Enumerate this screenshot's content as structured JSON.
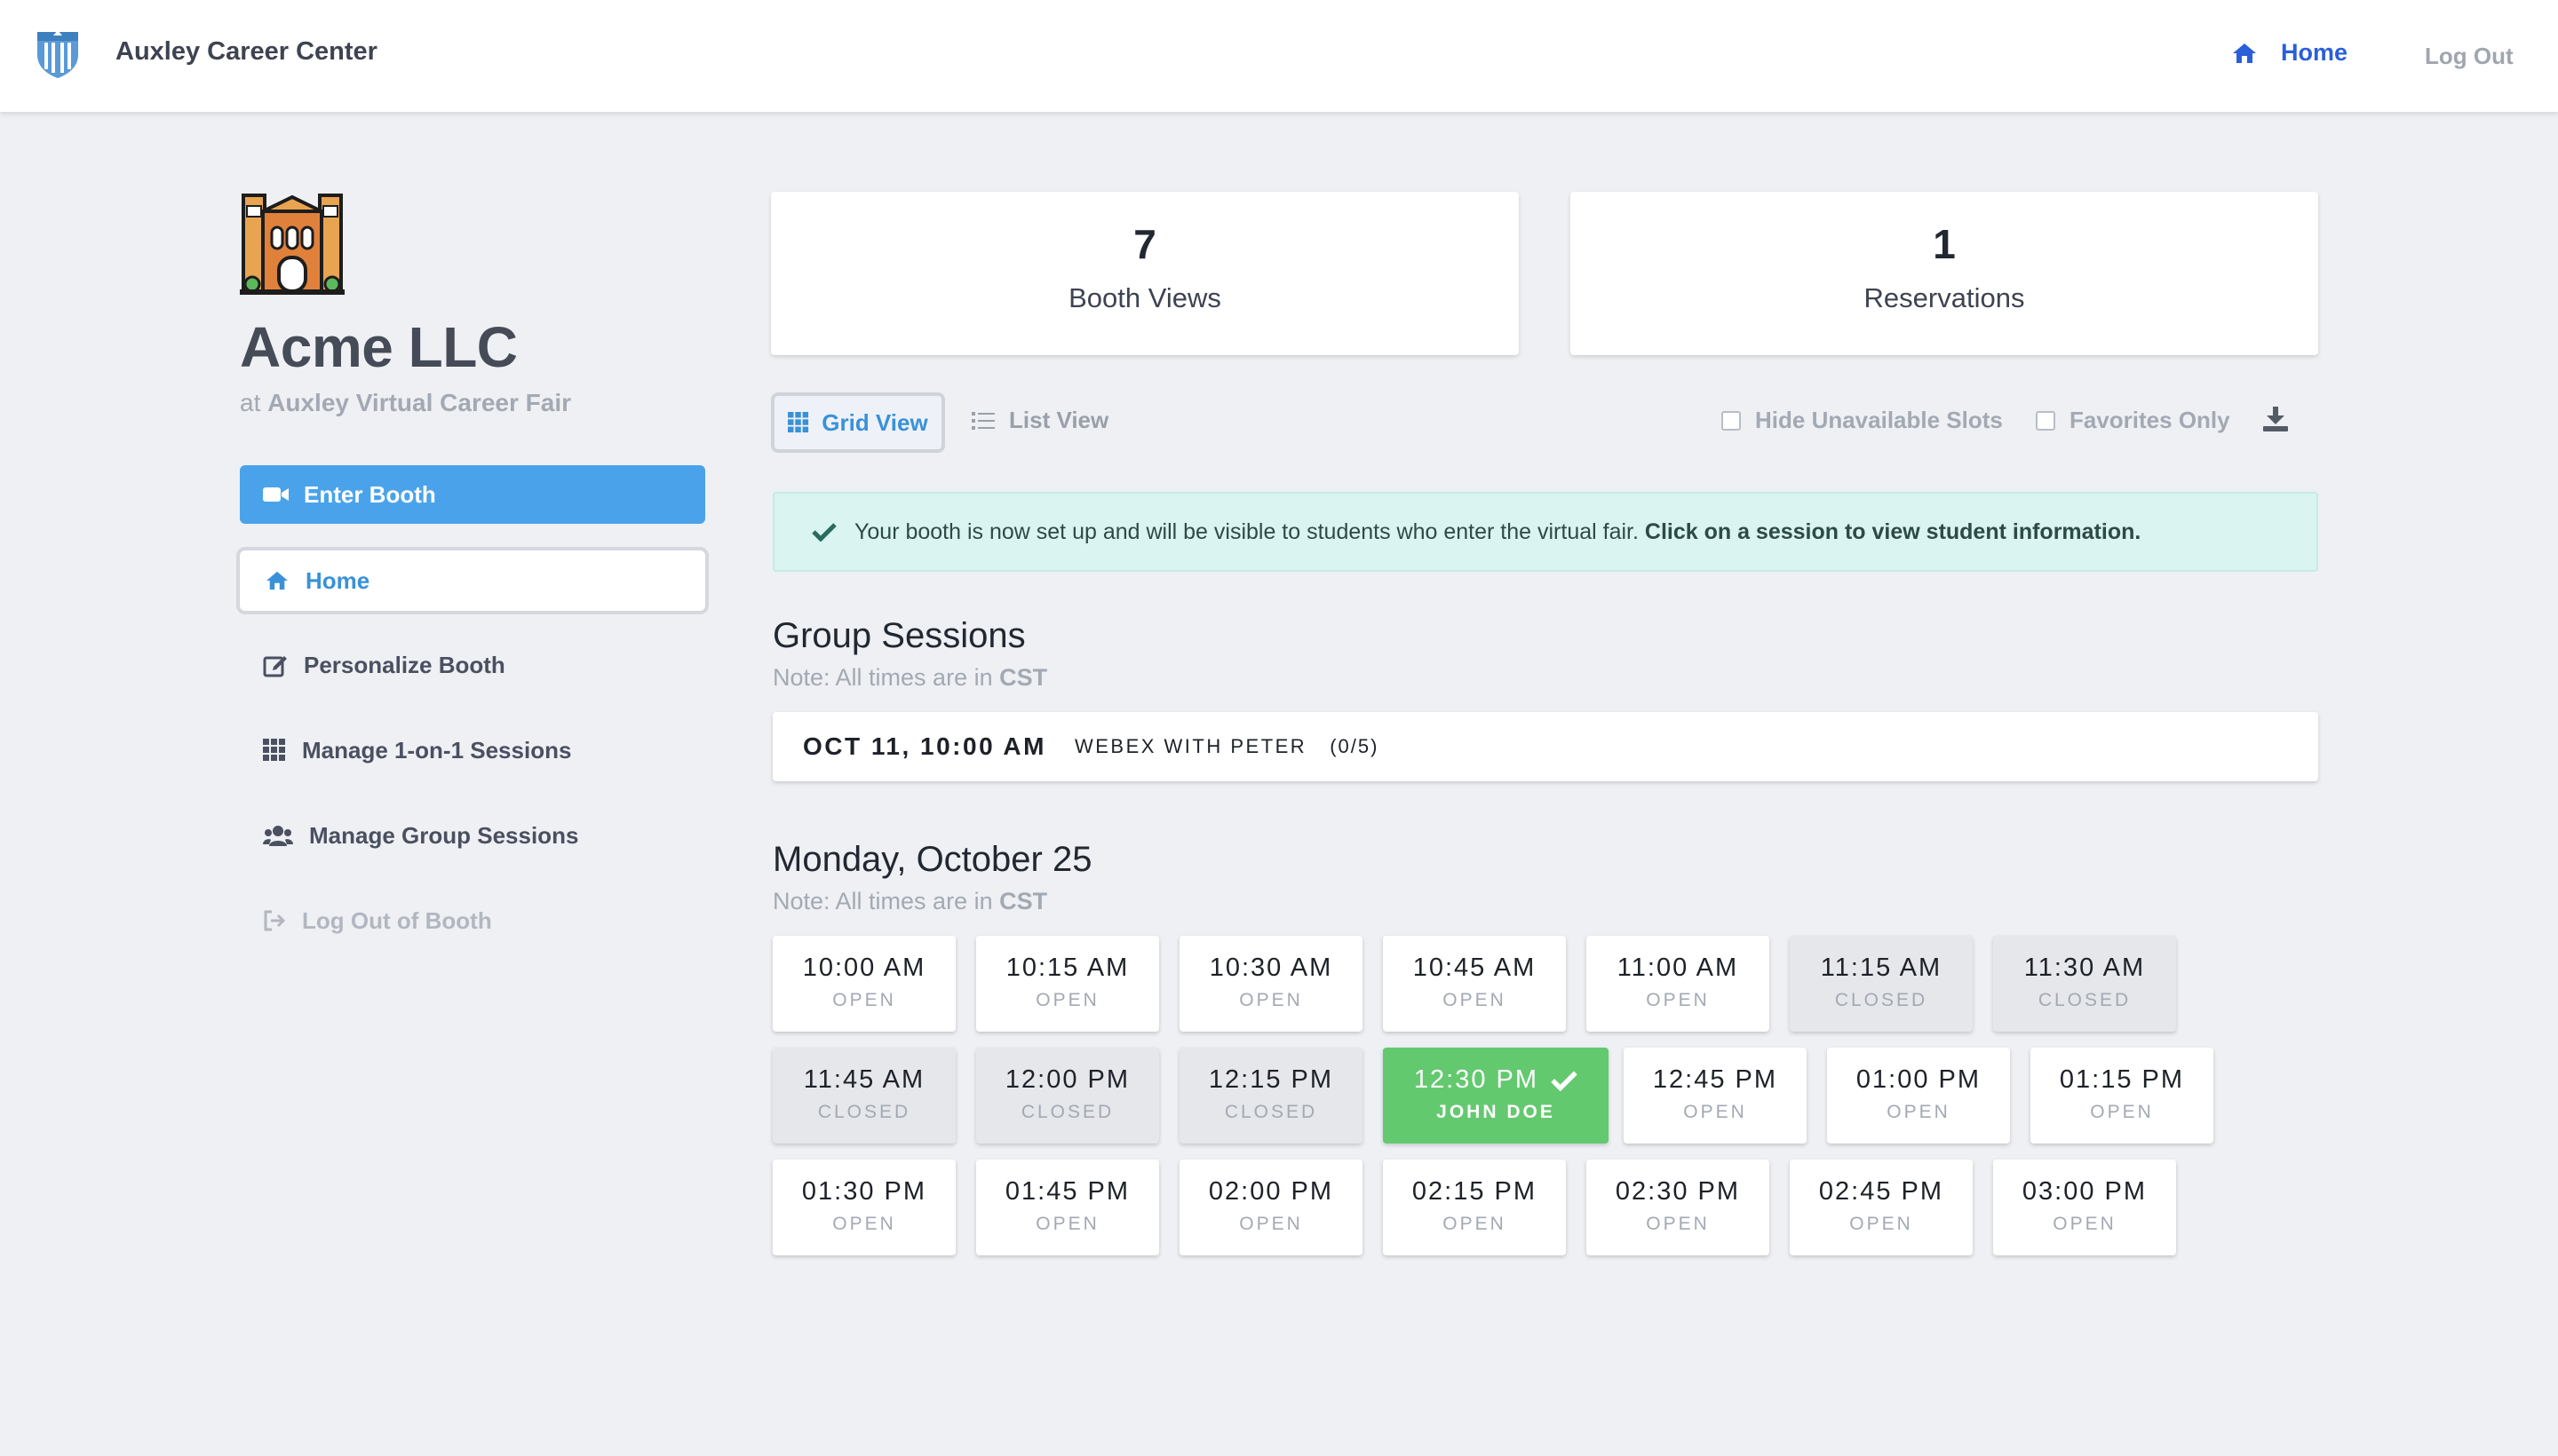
{
  "navbar": {
    "brand": "Auxley Career Center",
    "home_label": "Home",
    "logout_label": "Log Out",
    "accent_color": "#2b5fd9"
  },
  "company": {
    "name": "Acme LLC",
    "at_prefix": "at",
    "fair_name": "Auxley Virtual Career Fair"
  },
  "sidebar": {
    "enter_booth": "Enter Booth",
    "items": [
      {
        "label": "Home",
        "icon": "home-icon",
        "active": true
      },
      {
        "label": "Personalize Booth",
        "icon": "edit-icon"
      },
      {
        "label": "Manage 1-on-1 Sessions",
        "icon": "grid-icon"
      },
      {
        "label": "Manage Group Sessions",
        "icon": "users-icon"
      },
      {
        "label": "Log Out of Booth",
        "icon": "sign-out-icon",
        "muted": true
      }
    ]
  },
  "stats": [
    {
      "value": "7",
      "label": "Booth Views"
    },
    {
      "value": "1",
      "label": "Reservations"
    }
  ],
  "view_toggle": {
    "grid_label": "Grid View",
    "list_label": "List View",
    "selected": "grid"
  },
  "filters": {
    "hide_unavailable": "Hide Unavailable Slots",
    "favorites_only": "Favorites Only"
  },
  "alert": {
    "message": "Your booth is now set up and will be visible to students who enter the virtual fair.",
    "emphasis": "Click on a session to view student information."
  },
  "group_sessions": {
    "title": "Group Sessions",
    "note_prefix": "Note: All times are in",
    "timezone": "CST",
    "sessions": [
      {
        "date": "OCT 11, 10:00 AM",
        "name": "WEBEX WITH PETER",
        "count": "(0/5)"
      }
    ]
  },
  "day_schedule": {
    "title": "Monday, October 25",
    "note_prefix": "Note: All times are in",
    "timezone": "CST",
    "slots": [
      {
        "time": "10:00 AM",
        "status": "OPEN"
      },
      {
        "time": "10:15 AM",
        "status": "OPEN"
      },
      {
        "time": "10:30 AM",
        "status": "OPEN"
      },
      {
        "time": "10:45 AM",
        "status": "OPEN"
      },
      {
        "time": "11:00 AM",
        "status": "OPEN"
      },
      {
        "time": "11:15 AM",
        "status": "CLOSED"
      },
      {
        "time": "11:30 AM",
        "status": "CLOSED"
      },
      {
        "time": "11:45 AM",
        "status": "CLOSED"
      },
      {
        "time": "12:00 PM",
        "status": "CLOSED"
      },
      {
        "time": "12:15 PM",
        "status": "CLOSED"
      },
      {
        "time": "12:30 PM",
        "status": "JOHN DOE",
        "booked": true
      },
      {
        "time": "12:45 PM",
        "status": "OPEN"
      },
      {
        "time": "01:00 PM",
        "status": "OPEN"
      },
      {
        "time": "01:15 PM",
        "status": "OPEN"
      },
      {
        "time": "01:30 PM",
        "status": "OPEN"
      },
      {
        "time": "01:45 PM",
        "status": "OPEN"
      },
      {
        "time": "02:00 PM",
        "status": "OPEN"
      },
      {
        "time": "02:15 PM",
        "status": "OPEN"
      },
      {
        "time": "02:30 PM",
        "status": "OPEN"
      },
      {
        "time": "02:45 PM",
        "status": "OPEN"
      },
      {
        "time": "03:00 PM",
        "status": "OPEN"
      }
    ]
  },
  "colors": {
    "primary_button": "#4aa3ea",
    "booked_slot": "#63c96f",
    "closed_slot": "#e5e7eb",
    "alert_bg": "#d9f4f1"
  }
}
